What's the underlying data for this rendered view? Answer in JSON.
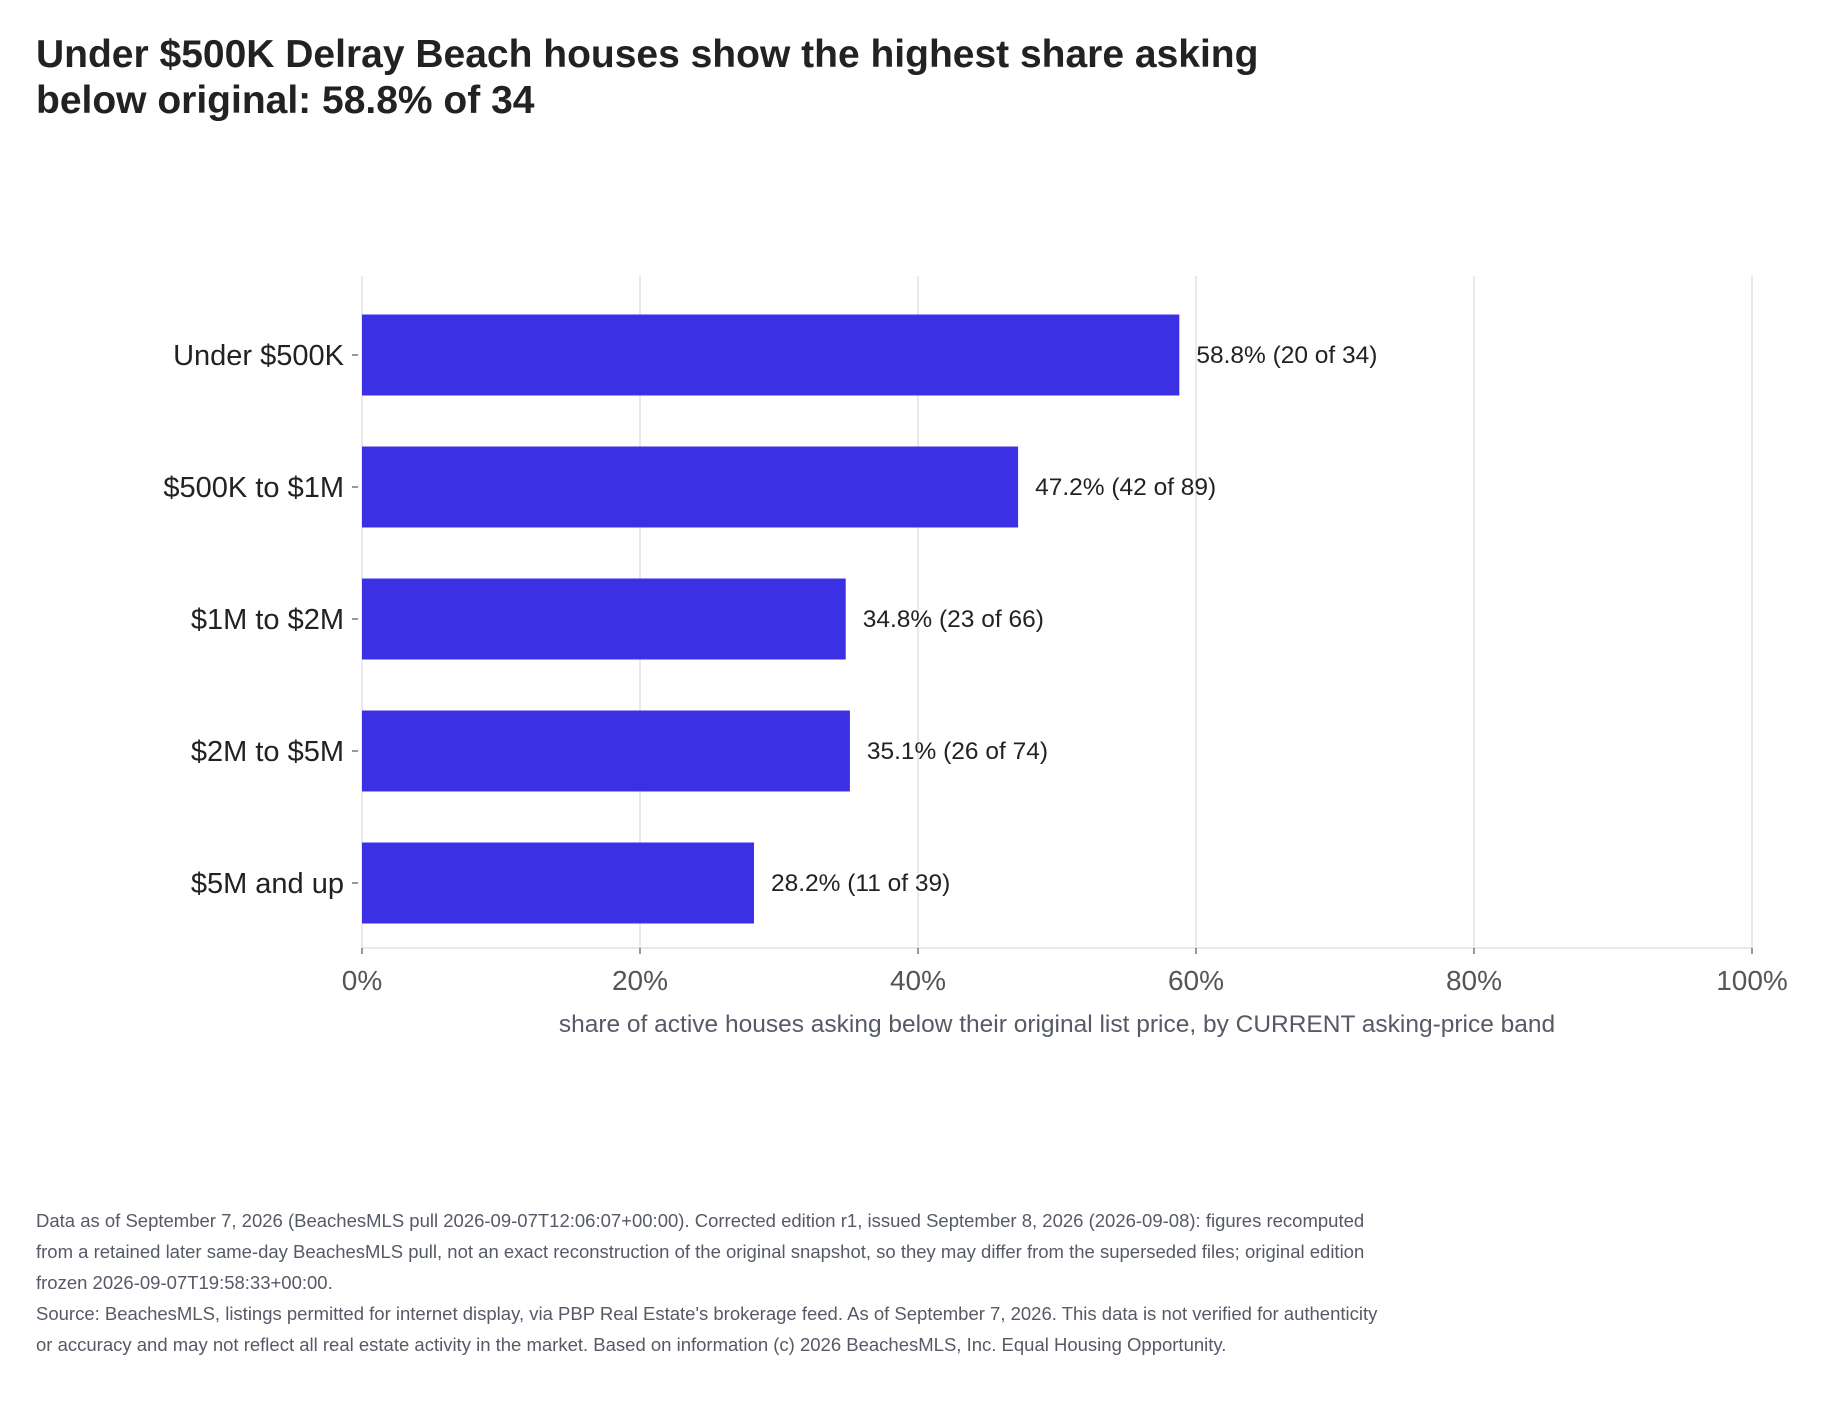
{
  "chart_data": {
    "type": "bar",
    "orientation": "horizontal",
    "title": "Under $500K Delray Beach houses show the highest share asking below original: 58.8% of 34",
    "xlabel": "share of active houses asking below their original list price, by CURRENT asking-price band",
    "ylabel": "",
    "xlim": [
      0,
      100
    ],
    "x_ticks": [
      "0%",
      "20%",
      "40%",
      "60%",
      "80%",
      "100%"
    ],
    "x_tick_values": [
      0,
      20,
      40,
      60,
      80,
      100
    ],
    "grid": "vertical",
    "bar_color": "#3b30e3",
    "categories": [
      "Under $500K",
      "$500K to $1M",
      "$1M to $2M",
      "$2M to $5M",
      "$5M and up"
    ],
    "values": [
      58.8,
      47.2,
      34.8,
      35.1,
      28.2
    ],
    "data_labels": [
      "58.8%  (20 of 34)",
      "47.2%  (42 of 89)",
      "34.8%  (23 of 66)",
      "35.1%  (26 of 74)",
      "28.2%  (11 of 39)"
    ]
  },
  "footnotes": {
    "edition": "Data as of September 7, 2026 (BeachesMLS pull 2026-09-07T12:06:07+00:00). Corrected edition r1, issued September 8, 2026 (2026-09-08): figures recomputed from a retained later same-day BeachesMLS pull, not an exact reconstruction of the original snapshot, so they may differ from the superseded files; original edition frozen 2026-09-07T19:58:33+00:00.",
    "source": "Source: BeachesMLS, listings permitted for internet display, via PBP Real Estate's brokerage feed. As of September 7, 2026. This data is not verified for authenticity or accuracy and may not reflect all real estate activity in the market. Based on information (c) 2026 BeachesMLS, Inc. Equal Housing Opportunity."
  }
}
